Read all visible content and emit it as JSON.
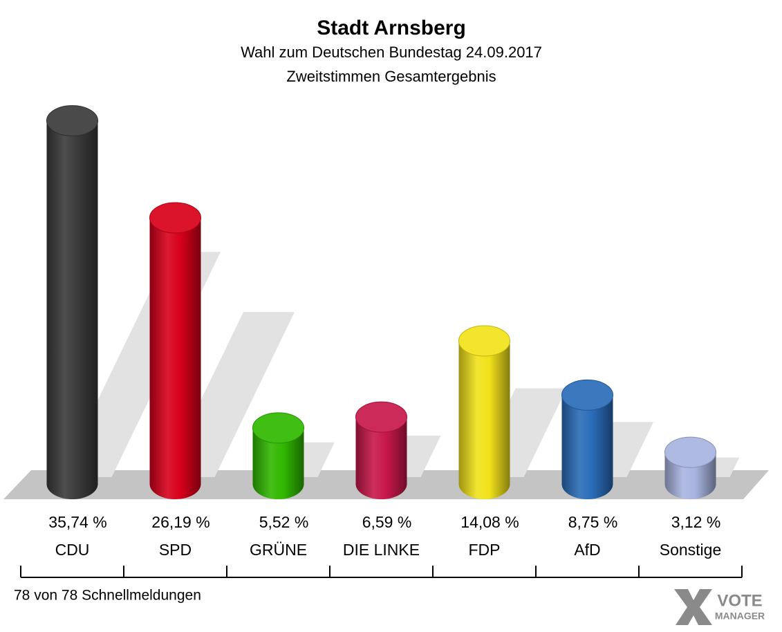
{
  "chart_data": {
    "type": "bar",
    "title": "Stadt Arnsberg",
    "subtitle": [
      "Wahl zum Deutschen Bundestag 24.09.2017",
      "Zweitstimmen Gesamtergebnis"
    ],
    "categories": [
      "CDU",
      "SPD",
      "GRÜNE",
      "DIE LINKE",
      "FDP",
      "AfD",
      "Sonstige"
    ],
    "values": [
      35.74,
      26.19,
      5.52,
      6.59,
      14.08,
      8.75,
      3.12
    ],
    "value_labels": [
      "35,74 %",
      "26,19 %",
      "5,52 %",
      "6,59 %",
      "14,08 %",
      "8,75 %",
      "3,12 %"
    ],
    "colors": [
      "#3a3a3a",
      "#d8001a",
      "#30b800",
      "#c8174a",
      "#f2e21a",
      "#2a6cb8",
      "#a8b4e0"
    ],
    "footer": "78 von 78 Schnellmeldungen",
    "logo": [
      "VOTE",
      "MANAGER"
    ]
  }
}
